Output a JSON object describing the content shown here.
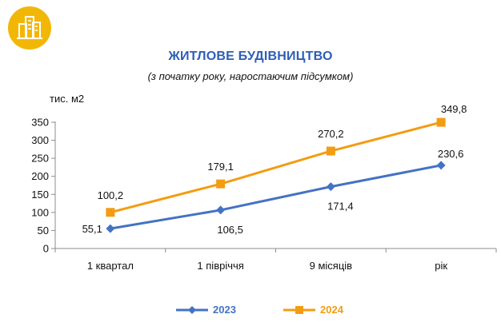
{
  "header": {
    "title": "ЖИТЛОВЕ БУДІВНИЦТВО",
    "subtitle": "(з початку року, наростаючим підсумком)",
    "badge_icon": "buildings-icon",
    "badge_color": "#f2b705"
  },
  "chart_data": {
    "type": "line",
    "title": "ЖИТЛОВЕ БУДІВНИЦТВО",
    "subtitle": "(з початку року, наростаючим підсумком)",
    "ylabel": "тис. м2",
    "xlabel": "",
    "categories": [
      "1 квартал",
      "1 півріччя",
      "9 місяців",
      "рік"
    ],
    "ylim": [
      0,
      350
    ],
    "yticks": [
      "0",
      "50",
      "100",
      "150",
      "200",
      "250",
      "300",
      "350"
    ],
    "grid": false,
    "legend_position": "bottom",
    "series": [
      {
        "name": "2023",
        "color": "#4472c4",
        "marker": "diamond",
        "values": [
          55.1,
          106.5,
          171.4,
          230.6
        ],
        "labels": [
          "55,1",
          "106,5",
          "171,4",
          "230,6"
        ]
      },
      {
        "name": "2024",
        "color": "#f39c12",
        "marker": "square",
        "values": [
          100.2,
          179.1,
          270.2,
          349.8
        ],
        "labels": [
          "100,2",
          "179,1",
          "270,2",
          "349,8"
        ]
      }
    ]
  }
}
